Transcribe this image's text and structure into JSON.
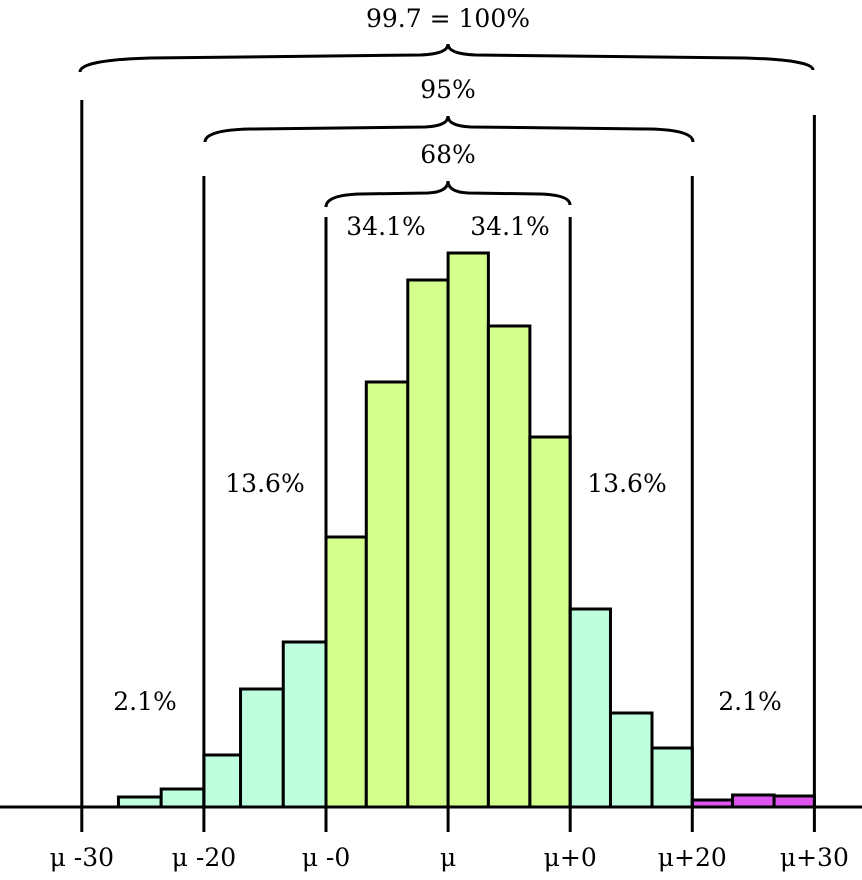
{
  "chart_data": {
    "type": "histogram",
    "bins": [
      -2.7,
      -2.35,
      -2,
      -1.7,
      -1.35,
      -1,
      -0.67,
      -0.33,
      0,
      0.33,
      0.67,
      1,
      1.33,
      1.67,
      2,
      2.33,
      2.67,
      3
    ],
    "values": [
      10,
      18,
      52,
      118,
      165,
      270,
      425,
      527,
      554,
      481,
      370,
      198,
      94,
      59,
      7,
      12,
      11
    ],
    "colors": [
      "#bfffdf",
      "#bfffdf",
      "#bfffdf",
      "#bfffdf",
      "#bfffdf",
      "#d4ff8c",
      "#d4ff8c",
      "#d4ff8c",
      "#d4ff8c",
      "#d4ff8c",
      "#d4ff8c",
      "#bfffdf",
      "#bfffdf",
      "#bfffdf",
      "#dd55ee",
      "#dd55ee",
      "#dd55ee"
    ],
    "xlim": [
      -3.67,
      3.39
    ],
    "xticks": [
      {
        "value": -3,
        "label": "μ -30"
      },
      {
        "value": -2,
        "label": "μ -20"
      },
      {
        "value": -1,
        "label": "μ -0"
      },
      {
        "value": 0,
        "label": "μ"
      },
      {
        "value": 1,
        "label": "μ+0"
      },
      {
        "value": 2,
        "label": "μ+20"
      },
      {
        "value": 3,
        "label": "μ+30"
      }
    ],
    "annotations": [
      "99.7 = 100%",
      "95%",
      "68%",
      "34.1%",
      "34.1%",
      "13.6%",
      "13.6%",
      "2.1%",
      "2.1%"
    ]
  }
}
